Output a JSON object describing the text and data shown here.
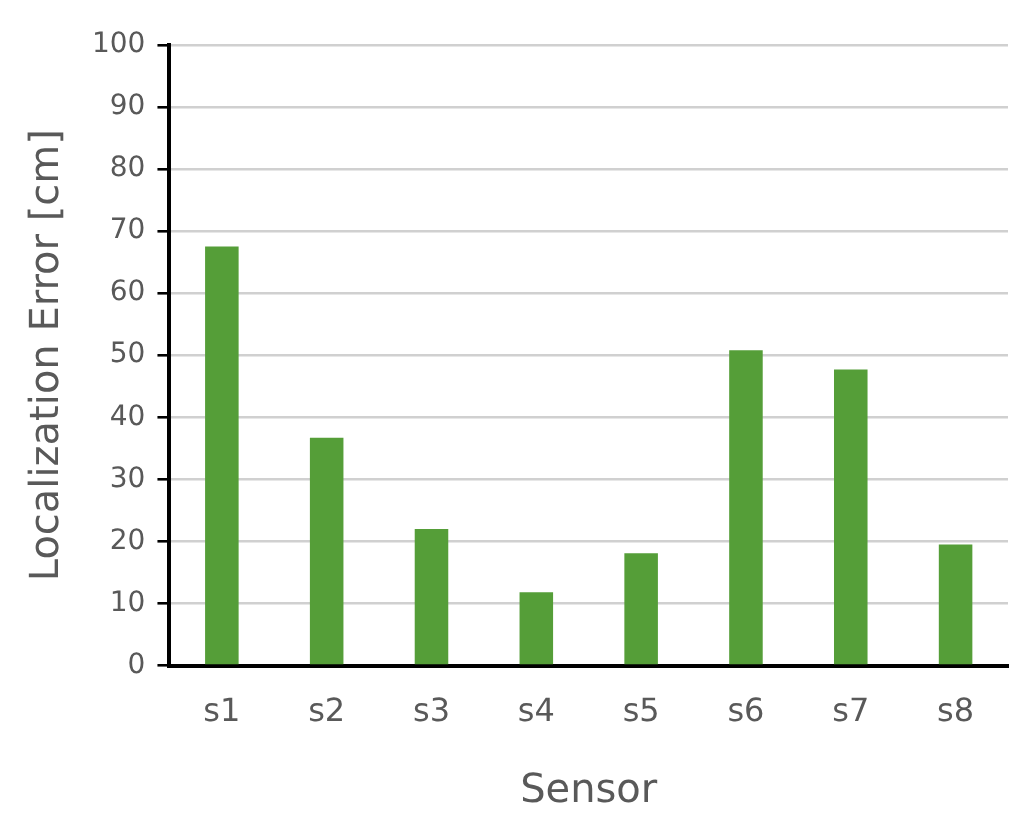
{
  "chart_data": {
    "type": "bar",
    "xlabel": "Sensor",
    "ylabel": "Localization Error [cm]",
    "categories": [
      "s1",
      "s2",
      "s3",
      "s4",
      "s5",
      "s6",
      "s7",
      "s8"
    ],
    "values": [
      67.5,
      36.7,
      22,
      11.8,
      18.1,
      50.8,
      47.7,
      19.5
    ],
    "color": "#559e38",
    "ylim": [
      0,
      100
    ],
    "yticks": [
      0,
      10,
      20,
      30,
      40,
      50,
      60,
      70,
      80,
      90,
      100
    ],
    "grid": "y",
    "legend": false
  }
}
